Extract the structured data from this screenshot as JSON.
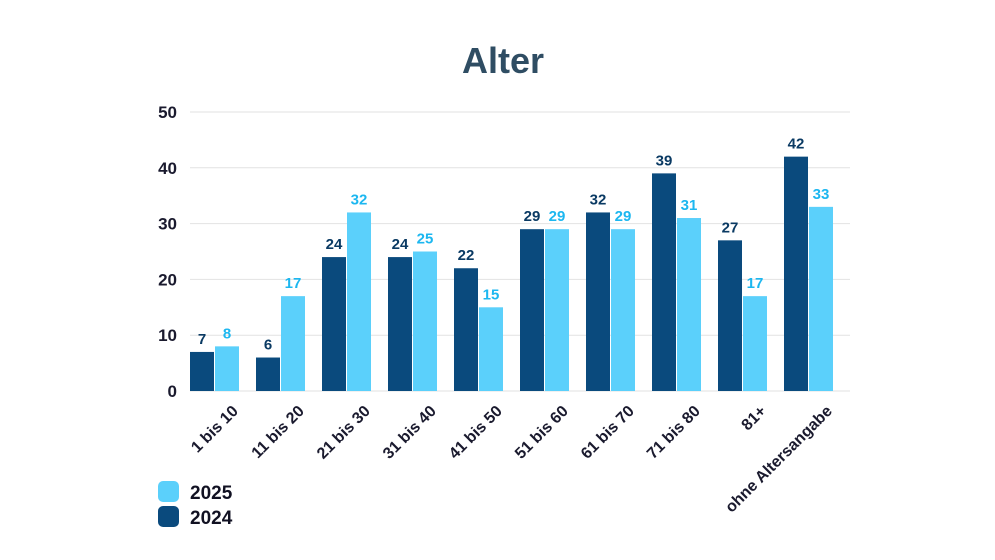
{
  "chart_data": {
    "type": "bar",
    "title": "Alter",
    "xlabel": "",
    "ylabel": "",
    "ylim": [
      0,
      50
    ],
    "yticks": [
      0,
      10,
      20,
      30,
      40,
      50
    ],
    "grid": true,
    "legend_position": "bottom-left",
    "categories": [
      "1 bis 10",
      "11 bis 20",
      "21 bis 30",
      "31 bis 40",
      "41 bis 50",
      "51 bis 60",
      "61 bis 70",
      "71 bis 80",
      "81+",
      "ohne Altersangabe"
    ],
    "series": [
      {
        "name": "2024",
        "color": "#0a4a7d",
        "label_color": "#0a3a63",
        "values": [
          7,
          6,
          24,
          24,
          22,
          29,
          32,
          39,
          27,
          42
        ]
      },
      {
        "name": "2025",
        "color": "#5bd0fb",
        "label_color": "#1cb7f0",
        "values": [
          8,
          17,
          32,
          25,
          15,
          29,
          29,
          31,
          17,
          33
        ]
      }
    ],
    "legend_order": [
      "2025",
      "2024"
    ]
  }
}
